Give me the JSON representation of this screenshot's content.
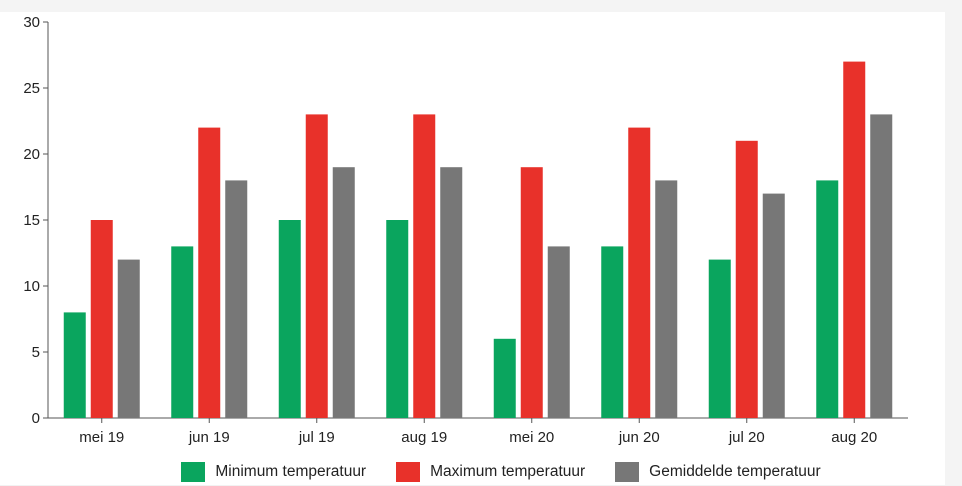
{
  "chart_data": {
    "type": "bar",
    "title": "",
    "xlabel": "",
    "ylabel": "",
    "ylim": [
      0,
      30
    ],
    "yticks": [
      "0",
      "5",
      "10",
      "15",
      "20",
      "25",
      "30"
    ],
    "categories": [
      "mei 19",
      "jun 19",
      "jul 19",
      "aug 19",
      "mei 20",
      "jun 20",
      "jul 20",
      "aug 20"
    ],
    "series": [
      {
        "name": "Minimum temperatuur",
        "color": "#0aa55e",
        "values": [
          8,
          13,
          15,
          15,
          6,
          13,
          12,
          18
        ]
      },
      {
        "name": "Maximum temperatuur",
        "color": "#e8312a",
        "values": [
          15,
          22,
          23,
          23,
          19,
          22,
          21,
          27
        ]
      },
      {
        "name": "Gemiddelde temperatuur",
        "color": "#777777",
        "values": [
          12,
          18,
          19,
          19,
          13,
          18,
          17,
          23
        ]
      }
    ],
    "grid": false,
    "legend_position": "bottom"
  }
}
